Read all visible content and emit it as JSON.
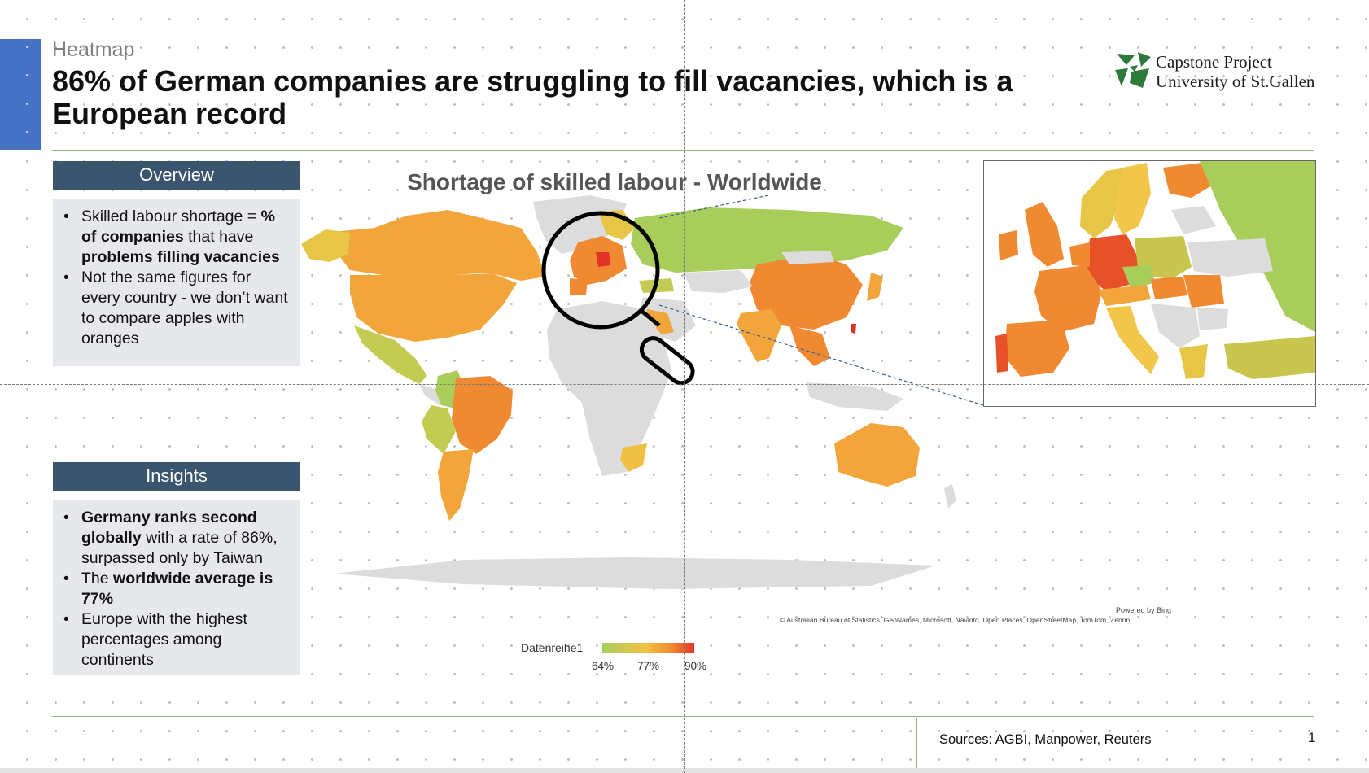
{
  "header": {
    "section_label": "Heatmap",
    "title": "86% of German companies are struggling to fill vacancies, which is a European record"
  },
  "logo": {
    "line1": "Capstone Project",
    "line2": "University of St.Gallen",
    "color": "#2e7a3a"
  },
  "overview": {
    "heading": "Overview",
    "item1_pre": "Skilled labour shortage = ",
    "item1_bold1": "% of companies",
    "item1_mid": " that have ",
    "item1_bold2": "problems filling vacancies",
    "item2": "Not the same figures for every country - we don’t want to compare apples with oranges"
  },
  "insights": {
    "heading": "Insights",
    "item1_bold": "Germany ranks second globally",
    "item1_rest": " with a rate of 86%, surpassed only by Taiwan",
    "item2_pre": "The ",
    "item2_bold": "worldwide average is 77%",
    "item3": "Europe with the highest percentages among continents"
  },
  "map": {
    "title": "Shortage of skilled labour - Worldwide",
    "powered_by": "Powered by Bing",
    "attribution": "© Australian Bureau of Statistics, GeoNames, Microsoft, Navinfo, Open Places, OpenStreetMap, TomTom, Zenrin",
    "legend": {
      "series_name": "Datenreihe1",
      "min_label": "64%",
      "mid_label": "77%",
      "max_label": "90%",
      "colors": [
        "#a7cf5c",
        "#f3c043",
        "#f0842e",
        "#e6302a"
      ]
    },
    "colors": {
      "no_data": "#dcdcdc",
      "green": "#a8cd5a",
      "yellow": "#e6c547",
      "light_orange": "#f2a53b",
      "orange": "#f08a32",
      "red_orange": "#ea5b28",
      "red": "#e13428"
    }
  },
  "footer": {
    "sources": "Sources: AGBI, Manpower, Reuters",
    "page_number": "1"
  }
}
